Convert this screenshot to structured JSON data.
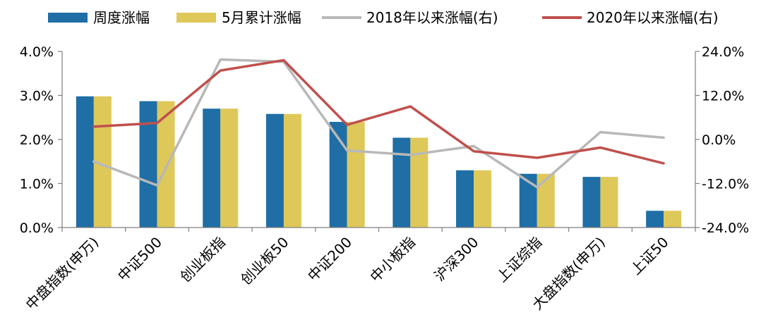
{
  "chart_data": {
    "type": "bar+line",
    "categories": [
      "中盘指数(申万)",
      "中证500",
      "创业板指",
      "创业板50",
      "中证200",
      "中小板指",
      "沪深300",
      "上证综指",
      "大盘指数(申万)",
      "上证50"
    ],
    "bar_series": [
      {
        "name": "周度涨幅",
        "color": "#1f6ea6",
        "values": [
          2.98,
          2.87,
          2.7,
          2.58,
          2.4,
          2.04,
          1.3,
          1.22,
          1.15,
          0.38
        ]
      },
      {
        "name": "5月累计涨幅",
        "color": "#dfc85a",
        "values": [
          2.98,
          2.87,
          2.7,
          2.58,
          2.4,
          2.04,
          1.3,
          1.22,
          1.15,
          0.38
        ]
      }
    ],
    "line_series": [
      {
        "name": "2018年以来涨幅(右)",
        "color": "#b8b8b8",
        "values": [
          -6.0,
          -12.5,
          21.8,
          21.2,
          -3.0,
          -4.2,
          -1.8,
          -13.0,
          2.0,
          0.5
        ]
      },
      {
        "name": "2020年以来涨幅(右)",
        "color": "#c0504d",
        "values": [
          3.5,
          4.5,
          18.8,
          21.6,
          4.0,
          9.0,
          -3.2,
          -5.0,
          -2.2,
          -6.5
        ]
      }
    ],
    "y_left": {
      "min": 0,
      "max": 4,
      "step": 1,
      "ticks": [
        "0.0%",
        "1.0%",
        "2.0%",
        "3.0%",
        "4.0%"
      ]
    },
    "y_right": {
      "min": -24,
      "max": 24,
      "step": 12,
      "ticks": [
        "-24.0%",
        "-12.0%",
        "0.0%",
        "12.0%",
        "24.0%"
      ]
    },
    "legend_position": "top",
    "grid": false
  }
}
